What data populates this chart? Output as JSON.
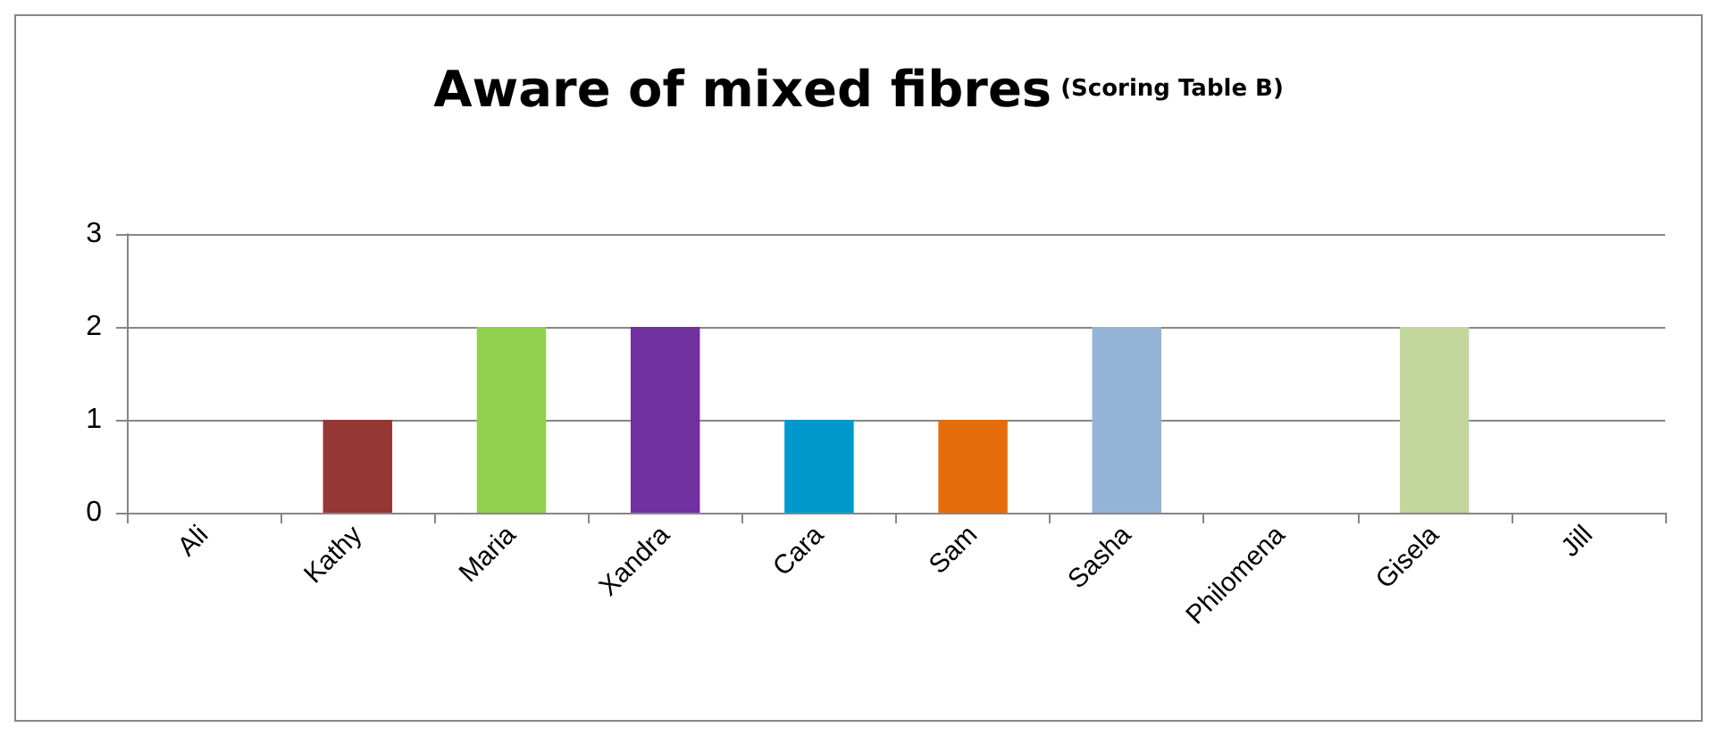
{
  "chart_data": {
    "type": "bar",
    "title": "Aware of mixed fibres",
    "subtitle": "(Scoring Table B)",
    "categories": [
      "Ali",
      "Kathy",
      "Maria",
      "Xandra",
      "Cara",
      "Sam",
      "Sasha",
      "Philomena",
      "Gisela",
      "Jill"
    ],
    "values": [
      0,
      1,
      2,
      2,
      1,
      1,
      2,
      0,
      2,
      0
    ],
    "colors": [
      "#4f81bd",
      "#953735",
      "#92d050",
      "#7030a0",
      "#0099cc",
      "#e46c0a",
      "#95b3d7",
      "#ffc000",
      "#c3d69b",
      "#4f81bd"
    ],
    "ylim": [
      0,
      3
    ],
    "yticks": [
      0,
      1,
      2,
      3
    ],
    "grid": "y"
  }
}
